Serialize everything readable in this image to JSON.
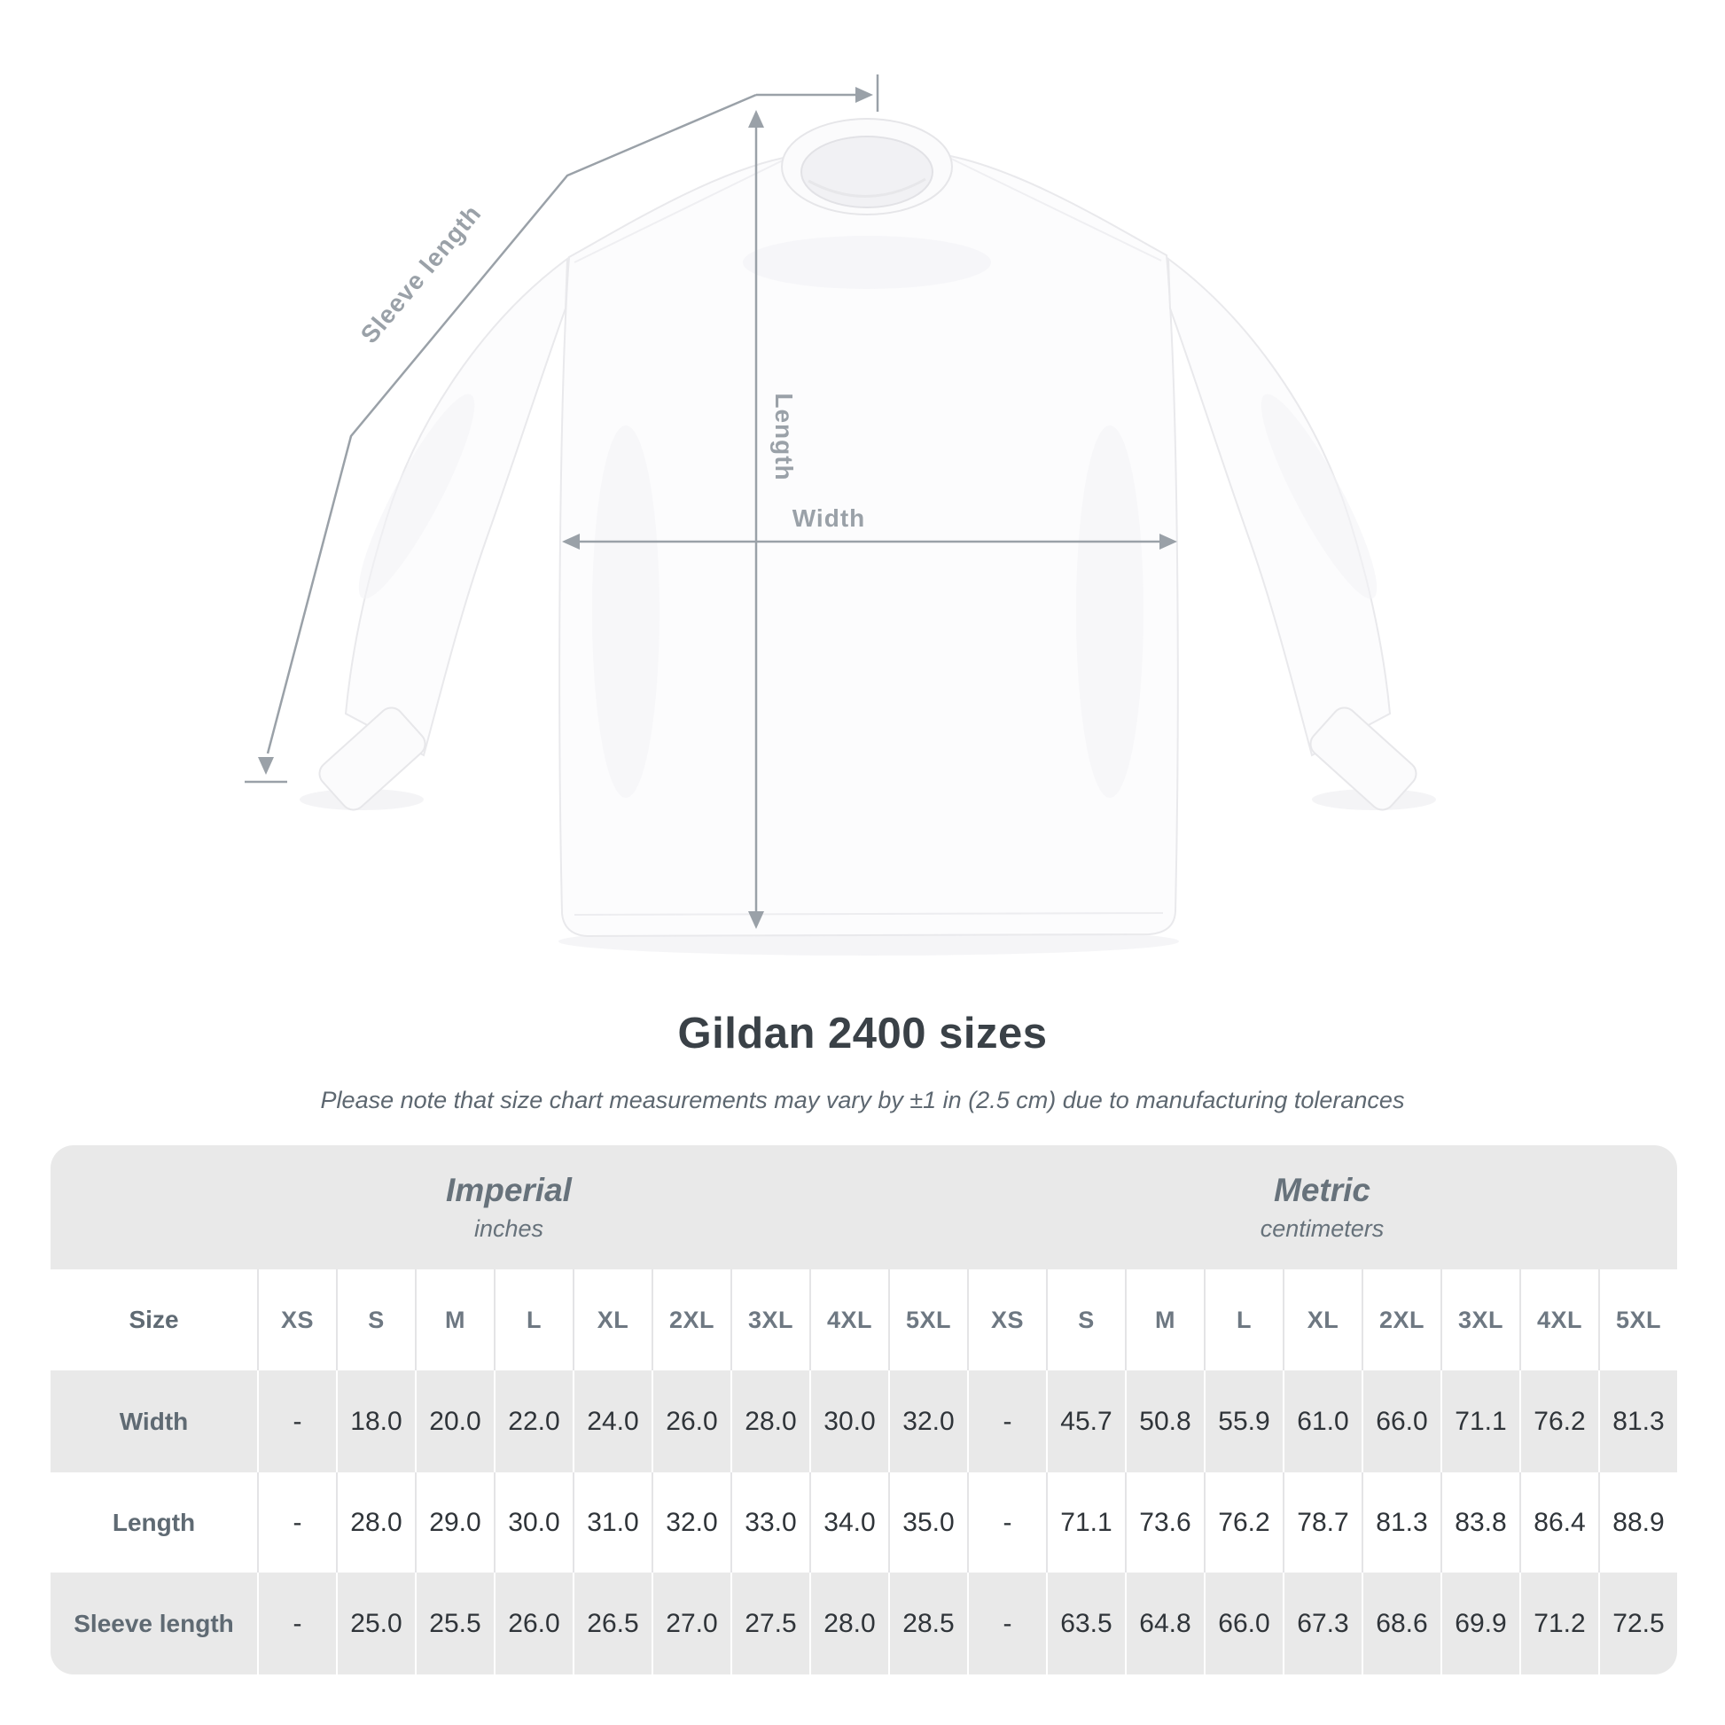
{
  "title": "Gildan 2400 sizes",
  "subtitle": "Please note that size chart measurements may vary by ±1 in (2.5 cm) due to manufacturing tolerances",
  "diagram": {
    "sleeve_label": "Sleeve length",
    "length_label": "Length",
    "width_label": "Width",
    "line_color": "#9aa1a8",
    "shirt_fill": "#fcfcfd",
    "shirt_outline": "#e9e9ec"
  },
  "table": {
    "size_header": "Size",
    "unit_groups": [
      {
        "name": "Imperial",
        "unit": "inches"
      },
      {
        "name": "Metric",
        "unit": "centimeters"
      }
    ],
    "sizes": [
      "XS",
      "S",
      "M",
      "L",
      "XL",
      "2XL",
      "3XL",
      "4XL",
      "5XL"
    ],
    "rows": [
      {
        "label": "Width",
        "imperial": [
          "-",
          "18.0",
          "20.0",
          "22.0",
          "24.0",
          "26.0",
          "28.0",
          "30.0",
          "32.0"
        ],
        "metric": [
          "-",
          "45.7",
          "50.8",
          "55.9",
          "61.0",
          "66.0",
          "71.1",
          "76.2",
          "81.3"
        ]
      },
      {
        "label": "Length",
        "imperial": [
          "-",
          "28.0",
          "29.0",
          "30.0",
          "31.0",
          "32.0",
          "33.0",
          "34.0",
          "35.0"
        ],
        "metric": [
          "-",
          "71.1",
          "73.6",
          "76.2",
          "78.7",
          "81.3",
          "83.8",
          "86.4",
          "88.9"
        ]
      },
      {
        "label": "Sleeve length",
        "imperial": [
          "-",
          "25.0",
          "25.5",
          "26.0",
          "26.5",
          "27.0",
          "27.5",
          "28.0",
          "28.5"
        ],
        "metric": [
          "-",
          "63.5",
          "64.8",
          "66.0",
          "67.3",
          "68.6",
          "69.9",
          "71.2",
          "72.5"
        ]
      }
    ],
    "colors": {
      "band": "#e9e9e9",
      "alt_row": "#e9e9e9",
      "header_text": "#6e7882",
      "value_text": "#2f3439"
    }
  },
  "chart_data": {
    "type": "table",
    "title": "Gildan 2400 sizes",
    "note": "Size chart measurements may vary by ±1 in (2.5 cm) due to manufacturing tolerances",
    "sizes": [
      "XS",
      "S",
      "M",
      "L",
      "XL",
      "2XL",
      "3XL",
      "4XL",
      "5XL"
    ],
    "measurements": [
      {
        "name": "Width",
        "imperial_in": [
          null,
          18.0,
          20.0,
          22.0,
          24.0,
          26.0,
          28.0,
          30.0,
          32.0
        ],
        "metric_cm": [
          null,
          45.7,
          50.8,
          55.9,
          61.0,
          66.0,
          71.1,
          76.2,
          81.3
        ]
      },
      {
        "name": "Length",
        "imperial_in": [
          null,
          28.0,
          29.0,
          30.0,
          31.0,
          32.0,
          33.0,
          34.0,
          35.0
        ],
        "metric_cm": [
          null,
          71.1,
          73.6,
          76.2,
          78.7,
          81.3,
          83.8,
          86.4,
          88.9
        ]
      },
      {
        "name": "Sleeve length",
        "imperial_in": [
          null,
          25.0,
          25.5,
          26.0,
          26.5,
          27.0,
          27.5,
          28.0,
          28.5
        ],
        "metric_cm": [
          null,
          63.5,
          64.8,
          66.0,
          67.3,
          68.6,
          69.9,
          71.2,
          72.5
        ]
      }
    ]
  }
}
